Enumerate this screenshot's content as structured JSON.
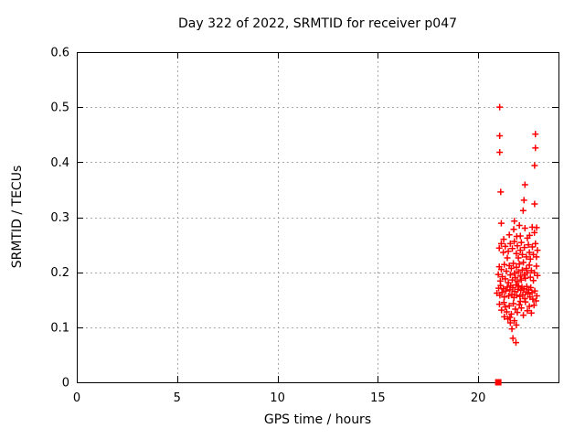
{
  "title": "Day 322 of 2022, SRMTID for receiver p047",
  "colors": {
    "marker": "#ff0000",
    "grid": "#a8a8a8",
    "axis": "#000000",
    "text": "#000000",
    "background": "#ffffff"
  },
  "chart_data": {
    "type": "scatter",
    "title": "Day 322 of 2022, SRMTID for receiver p047",
    "xlabel": "GPS time / hours",
    "ylabel": "SRMTID / TECUs",
    "xlim": [
      0,
      24
    ],
    "ylim": [
      0,
      0.6
    ],
    "xticks": [
      0,
      5,
      10,
      15,
      20
    ],
    "xtick_labels": [
      "0",
      "5",
      "10",
      "15",
      "20"
    ],
    "yticks": [
      0,
      0.1,
      0.2,
      0.3,
      0.4,
      0.5,
      0.6
    ],
    "ytick_labels": [
      "0",
      "0.1",
      "0.2",
      "0.3",
      "0.4",
      "0.5",
      "0.6"
    ],
    "grid": true,
    "legend": "none",
    "series": [
      {
        "name": "srmtid",
        "marker": "plus",
        "color": "#ff0000",
        "points": [
          [
            21.07,
            0.5
          ],
          [
            21.07,
            0.448
          ],
          [
            22.85,
            0.451
          ],
          [
            22.85,
            0.426
          ],
          [
            21.07,
            0.418
          ],
          [
            22.81,
            0.394
          ],
          [
            22.33,
            0.359
          ],
          [
            21.12,
            0.346
          ],
          [
            22.28,
            0.331
          ],
          [
            22.81,
            0.324
          ],
          [
            22.24,
            0.312
          ],
          [
            21.8,
            0.293
          ],
          [
            21.15,
            0.289
          ],
          [
            21.77,
            0.278
          ],
          [
            22.33,
            0.28
          ],
          [
            22.69,
            0.282
          ],
          [
            22.91,
            0.281
          ],
          [
            21.92,
            0.265
          ],
          [
            22.1,
            0.266
          ],
          [
            22.56,
            0.267
          ],
          [
            21.27,
            0.26
          ],
          [
            22.8,
            0.272
          ],
          [
            22.05,
            0.285
          ],
          [
            21.55,
            0.268
          ],
          [
            22.45,
            0.262
          ],
          [
            21.05,
            0.244
          ],
          [
            21.15,
            0.252
          ],
          [
            21.25,
            0.236
          ],
          [
            21.35,
            0.247
          ],
          [
            21.5,
            0.238
          ],
          [
            21.6,
            0.252
          ],
          [
            21.7,
            0.243
          ],
          [
            21.8,
            0.256
          ],
          [
            21.9,
            0.234
          ],
          [
            21.95,
            0.248
          ],
          [
            22.0,
            0.226
          ],
          [
            22.1,
            0.24
          ],
          [
            22.15,
            0.254
          ],
          [
            22.2,
            0.232
          ],
          [
            22.3,
            0.245
          ],
          [
            22.4,
            0.228
          ],
          [
            22.5,
            0.25
          ],
          [
            22.55,
            0.236
          ],
          [
            22.6,
            0.224
          ],
          [
            22.7,
            0.246
          ],
          [
            22.75,
            0.232
          ],
          [
            22.85,
            0.252
          ],
          [
            22.9,
            0.228
          ],
          [
            22.95,
            0.24
          ],
          [
            21.45,
            0.226
          ],
          [
            21.0,
            0.196
          ],
          [
            21.05,
            0.21
          ],
          [
            21.1,
            0.184
          ],
          [
            21.15,
            0.205
          ],
          [
            21.2,
            0.192
          ],
          [
            21.3,
            0.214
          ],
          [
            21.35,
            0.188
          ],
          [
            21.4,
            0.202
          ],
          [
            21.5,
            0.181
          ],
          [
            21.55,
            0.212
          ],
          [
            21.6,
            0.195
          ],
          [
            21.65,
            0.207
          ],
          [
            21.7,
            0.186
          ],
          [
            21.75,
            0.216
          ],
          [
            21.8,
            0.198
          ],
          [
            21.85,
            0.19
          ],
          [
            21.9,
            0.209
          ],
          [
            21.95,
            0.183
          ],
          [
            22.0,
            0.201
          ],
          [
            22.05,
            0.215
          ],
          [
            22.1,
            0.193
          ],
          [
            22.15,
            0.186
          ],
          [
            22.2,
            0.204
          ],
          [
            22.25,
            0.218
          ],
          [
            22.3,
            0.196
          ],
          [
            22.35,
            0.189
          ],
          [
            22.4,
            0.207
          ],
          [
            22.45,
            0.199
          ],
          [
            22.55,
            0.213
          ],
          [
            22.6,
            0.191
          ],
          [
            22.65,
            0.203
          ],
          [
            22.75,
            0.185
          ],
          [
            22.8,
            0.199
          ],
          [
            22.9,
            0.211
          ],
          [
            22.95,
            0.194
          ],
          [
            21.02,
            0.171
          ],
          [
            21.08,
            0.158
          ],
          [
            21.12,
            0.176
          ],
          [
            21.18,
            0.163
          ],
          [
            21.25,
            0.17
          ],
          [
            21.3,
            0.155
          ],
          [
            21.38,
            0.166
          ],
          [
            21.45,
            0.173
          ],
          [
            21.52,
            0.157
          ],
          [
            21.58,
            0.168
          ],
          [
            21.62,
            0.176
          ],
          [
            21.68,
            0.16
          ],
          [
            21.72,
            0.172
          ],
          [
            21.78,
            0.154
          ],
          [
            21.82,
            0.165
          ],
          [
            21.88,
            0.177
          ],
          [
            21.92,
            0.158
          ],
          [
            21.98,
            0.169
          ],
          [
            22.02,
            0.175
          ],
          [
            22.08,
            0.156
          ],
          [
            22.12,
            0.167
          ],
          [
            22.18,
            0.173
          ],
          [
            22.22,
            0.159
          ],
          [
            22.28,
            0.17
          ],
          [
            22.32,
            0.152
          ],
          [
            22.38,
            0.164
          ],
          [
            22.42,
            0.174
          ],
          [
            22.48,
            0.161
          ],
          [
            22.52,
            0.168
          ],
          [
            22.58,
            0.155
          ],
          [
            22.62,
            0.172
          ],
          [
            22.68,
            0.163
          ],
          [
            22.72,
            0.151
          ],
          [
            22.82,
            0.166
          ],
          [
            22.92,
            0.157
          ],
          [
            20.93,
            0.162
          ],
          [
            21.06,
            0.142
          ],
          [
            21.16,
            0.131
          ],
          [
            21.28,
            0.145
          ],
          [
            21.42,
            0.128
          ],
          [
            21.55,
            0.139
          ],
          [
            21.65,
            0.124
          ],
          [
            21.75,
            0.143
          ],
          [
            21.85,
            0.133
          ],
          [
            21.95,
            0.127
          ],
          [
            22.05,
            0.141
          ],
          [
            22.15,
            0.135
          ],
          [
            22.25,
            0.122
          ],
          [
            22.35,
            0.146
          ],
          [
            22.45,
            0.13
          ],
          [
            22.55,
            0.138
          ],
          [
            22.65,
            0.126
          ],
          [
            22.78,
            0.14
          ],
          [
            22.88,
            0.148
          ],
          [
            21.35,
            0.137
          ],
          [
            22.1,
            0.147
          ],
          [
            21.48,
            0.115
          ],
          [
            21.6,
            0.108
          ],
          [
            21.68,
            0.097
          ],
          [
            21.73,
            0.08
          ],
          [
            21.8,
            0.112
          ],
          [
            21.58,
            0.118
          ],
          [
            21.9,
            0.104
          ],
          [
            21.3,
            0.119
          ],
          [
            21.88,
            0.072
          ]
        ]
      },
      {
        "name": "zero-marker",
        "marker": "square",
        "color": "#ff0000",
        "points": [
          [
            21.0,
            0.0
          ]
        ]
      }
    ]
  }
}
